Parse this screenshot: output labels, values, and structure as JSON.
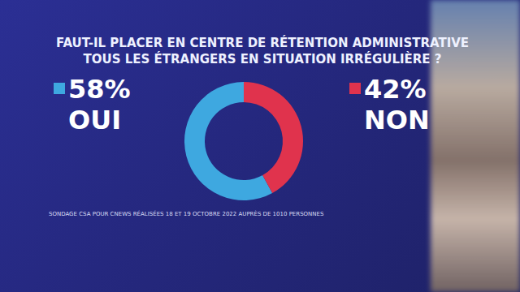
{
  "chart_data": {
    "type": "pie",
    "title": "FAUT-IL PLACER EN CENTRE DE RÉTENTION ADMINISTRATIVE\nTOUS LES ÉTRANGERS EN SITUATION IRRÉGULIÈRE ?",
    "categories": [
      "OUI",
      "NON"
    ],
    "values": [
      58,
      42
    ],
    "value_labels": [
      "58%",
      "42%"
    ],
    "colors": [
      "#3ea8e0",
      "#e0334d"
    ],
    "data_labels": true,
    "annotations": [
      "SONDAGE CSA POUR CNEWS RÉALISÉES 18 ET 19 OCTOBRE 2022 AUPRÈS DE 1010 PERSONNES"
    ]
  }
}
